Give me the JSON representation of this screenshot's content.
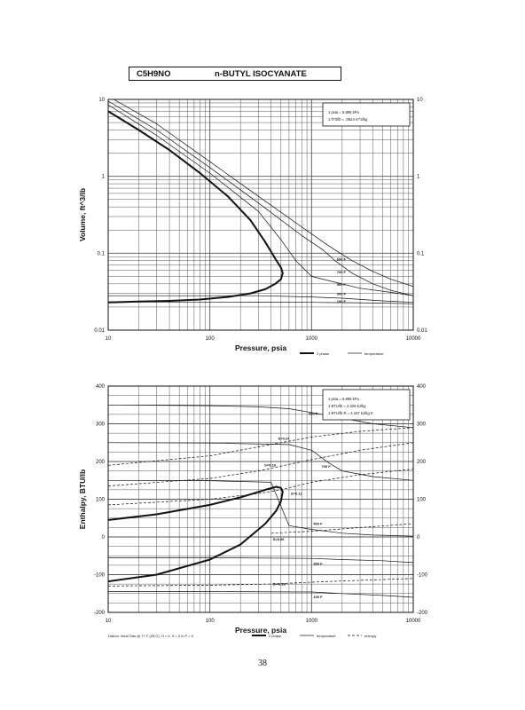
{
  "header": {
    "formula": "C5H9NO",
    "compound": "n-BUTYL ISOCYANATE"
  },
  "page_number": "38",
  "colors": {
    "ink": "#111111",
    "grid": "#555555",
    "background": "#ffffff"
  },
  "chart_data": [
    {
      "type": "line",
      "title": "",
      "xlabel": "Pressure,  psia",
      "ylabel": "Volume, ft^3/lb",
      "xscale": "log",
      "yscale": "log",
      "xlim": [
        10,
        10000
      ],
      "ylim": [
        0.01,
        10
      ],
      "x_ticks": [
        "10",
        "100",
        "1000",
        "10000"
      ],
      "y_ticks_left": [
        "0.01",
        "0.1",
        "1",
        "10"
      ],
      "y_ticks_right": [
        "0.01",
        "0.1",
        "1",
        "10"
      ],
      "grid": true,
      "legend_placement": "bottom-right",
      "legend": [
        {
          "label": "2 phase",
          "style": "thick"
        },
        {
          "label": "temperature",
          "style": "thin"
        }
      ],
      "conversion_box": [
        "1 psia  =  6.895 kPa",
        "1 ft^3/lb  =  .0624 m^3/kg"
      ],
      "conversion_placement": "top-right",
      "saturation_curve": {
        "x": [
          10,
          20,
          40,
          80,
          150,
          250,
          350,
          440,
          500,
          520,
          500,
          440,
          350,
          250,
          150,
          80,
          40,
          20,
          10
        ],
        "y": [
          7.0,
          4.0,
          2.2,
          1.1,
          0.55,
          0.27,
          0.14,
          0.085,
          0.065,
          0.055,
          0.046,
          0.04,
          0.034,
          0.03,
          0.027,
          0.025,
          0.024,
          0.0235,
          0.023
        ]
      },
      "isotherms": [
        {
          "label": "600 F",
          "x": [
            10,
            30,
            100,
            300,
            800,
            1300,
            1700,
            2500,
            4000,
            6000,
            10000
          ],
          "y": [
            9.5,
            4.0,
            1.3,
            0.45,
            0.17,
            0.11,
            0.08,
            0.055,
            0.04,
            0.033,
            0.028
          ]
        },
        {
          "label": "700 F",
          "x": [
            10,
            30,
            100,
            300,
            800,
            1300,
            1700,
            2500,
            4000,
            6000,
            10000
          ],
          "y": [
            11.0,
            4.8,
            1.55,
            0.55,
            0.22,
            0.14,
            0.11,
            0.08,
            0.058,
            0.046,
            0.037
          ]
        },
        {
          "label": "500 F",
          "x": [
            10,
            30,
            100,
            300,
            500,
            700,
            1000,
            1700,
            3000,
            6000,
            10000
          ],
          "y": [
            8.5,
            3.4,
            1.1,
            0.35,
            0.15,
            0.08,
            0.05,
            0.042,
            0.035,
            0.031,
            0.028
          ]
        },
        {
          "label": "300 F",
          "x": [
            10,
            300,
            1000,
            2000,
            5000,
            10000
          ],
          "y": [
            0.028,
            0.028,
            0.027,
            0.026,
            0.024,
            0.023
          ]
        },
        {
          "label": "100 F",
          "x": [
            10,
            300,
            1000,
            2000,
            5000,
            10000
          ],
          "y": [
            0.0232,
            0.0231,
            0.023,
            0.0228,
            0.0225,
            0.022
          ]
        }
      ],
      "annotations": [
        {
          "text": "600 F",
          "x": 1700,
          "y": 0.085
        },
        {
          "text": "700 F",
          "x": 1700,
          "y": 0.058
        },
        {
          "text": "500 F",
          "x": 1700,
          "y": 0.04
        },
        {
          "text": "300 F",
          "x": 1700,
          "y": 0.03
        },
        {
          "text": "100 F",
          "x": 1700,
          "y": 0.024
        }
      ]
    },
    {
      "type": "line",
      "title": "",
      "xlabel": "Pressure,  psia",
      "ylabel": "Enthalpy, BTU/lb",
      "xscale": "log",
      "yscale": "linear",
      "xlim": [
        10,
        10000
      ],
      "ylim": [
        -200,
        400
      ],
      "x_ticks": [
        "10",
        "100",
        "1000",
        "10000"
      ],
      "y_ticks_left": [
        "-200",
        "-100",
        "0",
        "100",
        "200",
        "300",
        "400"
      ],
      "y_ticks_right": [
        "-200",
        "-100",
        "0",
        "100",
        "200",
        "300",
        "400"
      ],
      "grid": true,
      "legend_placement": "bottom-right",
      "legend": [
        {
          "label": "2 phase",
          "style": "thick"
        },
        {
          "label": "temperature",
          "style": "thin"
        },
        {
          "label": "entropy",
          "style": "dashed"
        }
      ],
      "datum_note": "Datum: Ideal Gas @ 77 F (25 C), H = 0, S = 0 in P = 0",
      "conversion_box": [
        "1 psia  =  6.895 kPa",
        "1 BTU/lb  =  2.326 kJ/kg",
        "1 BTU/lb R  =  4.187 kJ/kg K"
      ],
      "conversion_placement": "top-right",
      "saturation_curve": {
        "x": [
          10,
          30,
          100,
          200,
          350,
          450,
          500,
          520,
          500,
          450,
          350,
          200,
          100,
          30,
          10
        ],
        "y": [
          45,
          60,
          85,
          105,
          125,
          133,
          130,
          120,
          95,
          70,
          35,
          -20,
          -60,
          -100,
          -118
        ]
      },
      "isotherms": [
        {
          "label": "600 F",
          "x": [
            10,
            100,
            300,
            600,
            1000,
            2000,
            4000,
            10000
          ],
          "y": [
            350,
            348,
            345,
            340,
            330,
            315,
            300,
            290
          ]
        },
        {
          "label": "700 F",
          "x": [
            10,
            100,
            600,
            1000,
            1500,
            2000,
            4000,
            10000
          ],
          "y": [
            250,
            249,
            245,
            230,
            195,
            175,
            160,
            150
          ]
        },
        {
          "label": "500 F",
          "x": [
            10,
            100,
            400,
            600,
            1000,
            2000,
            4000,
            10000
          ],
          "y": [
            150,
            149,
            145,
            30,
            20,
            10,
            5,
            2
          ]
        },
        {
          "label": "300 F",
          "x": [
            10,
            100,
            1000,
            2000,
            5000,
            10000
          ],
          "y": [
            -55,
            -55,
            -57,
            -60,
            -63,
            -68
          ]
        },
        {
          "label": "100 F",
          "x": [
            10,
            100,
            1000,
            2000,
            5000,
            10000
          ],
          "y": [
            -145,
            -145,
            -146,
            -150,
            -155,
            -160
          ]
        }
      ],
      "entropy_lines": [
        {
          "label": "S=0.24",
          "x": [
            10,
            100,
            500,
            1000,
            3000,
            10000
          ],
          "y": [
            190,
            215,
            250,
            265,
            280,
            290
          ]
        },
        {
          "label": "S=0.18",
          "x": [
            10,
            100,
            300,
            1000,
            3000,
            10000
          ],
          "y": [
            135,
            155,
            175,
            205,
            230,
            250
          ]
        },
        {
          "label": "S=0.12",
          "x": [
            10,
            100,
            300,
            500,
            1000,
            3000,
            10000
          ],
          "y": [
            85,
            100,
            115,
            125,
            145,
            165,
            180
          ]
        },
        {
          "label": "S=0.06",
          "x": [
            400,
            1000,
            3000,
            10000
          ],
          "y": [
            10,
            15,
            25,
            35
          ]
        },
        {
          "label": "S=-0.18",
          "x": [
            10,
            100,
            400,
            1000,
            3000,
            10000
          ],
          "y": [
            -130,
            -128,
            -125,
            -120,
            -115,
            -110
          ]
        }
      ],
      "annotations": [
        {
          "text": "600 F",
          "x": 900,
          "y": 328
        },
        {
          "text": "700 F",
          "x": 1200,
          "y": 188
        },
        {
          "text": "500 F",
          "x": 1000,
          "y": 36
        },
        {
          "text": "300 F",
          "x": 1000,
          "y": -69
        },
        {
          "text": "100 F",
          "x": 1000,
          "y": -158
        },
        {
          "text": "S=0.24",
          "x": 450,
          "y": 262
        },
        {
          "text": "S=0.18",
          "x": 330,
          "y": 192
        },
        {
          "text": "S=0.12",
          "x": 600,
          "y": 116
        },
        {
          "text": "S=0.06",
          "x": 400,
          "y": -5
        },
        {
          "text": "S=-0.18",
          "x": 400,
          "y": -124
        }
      ]
    }
  ]
}
